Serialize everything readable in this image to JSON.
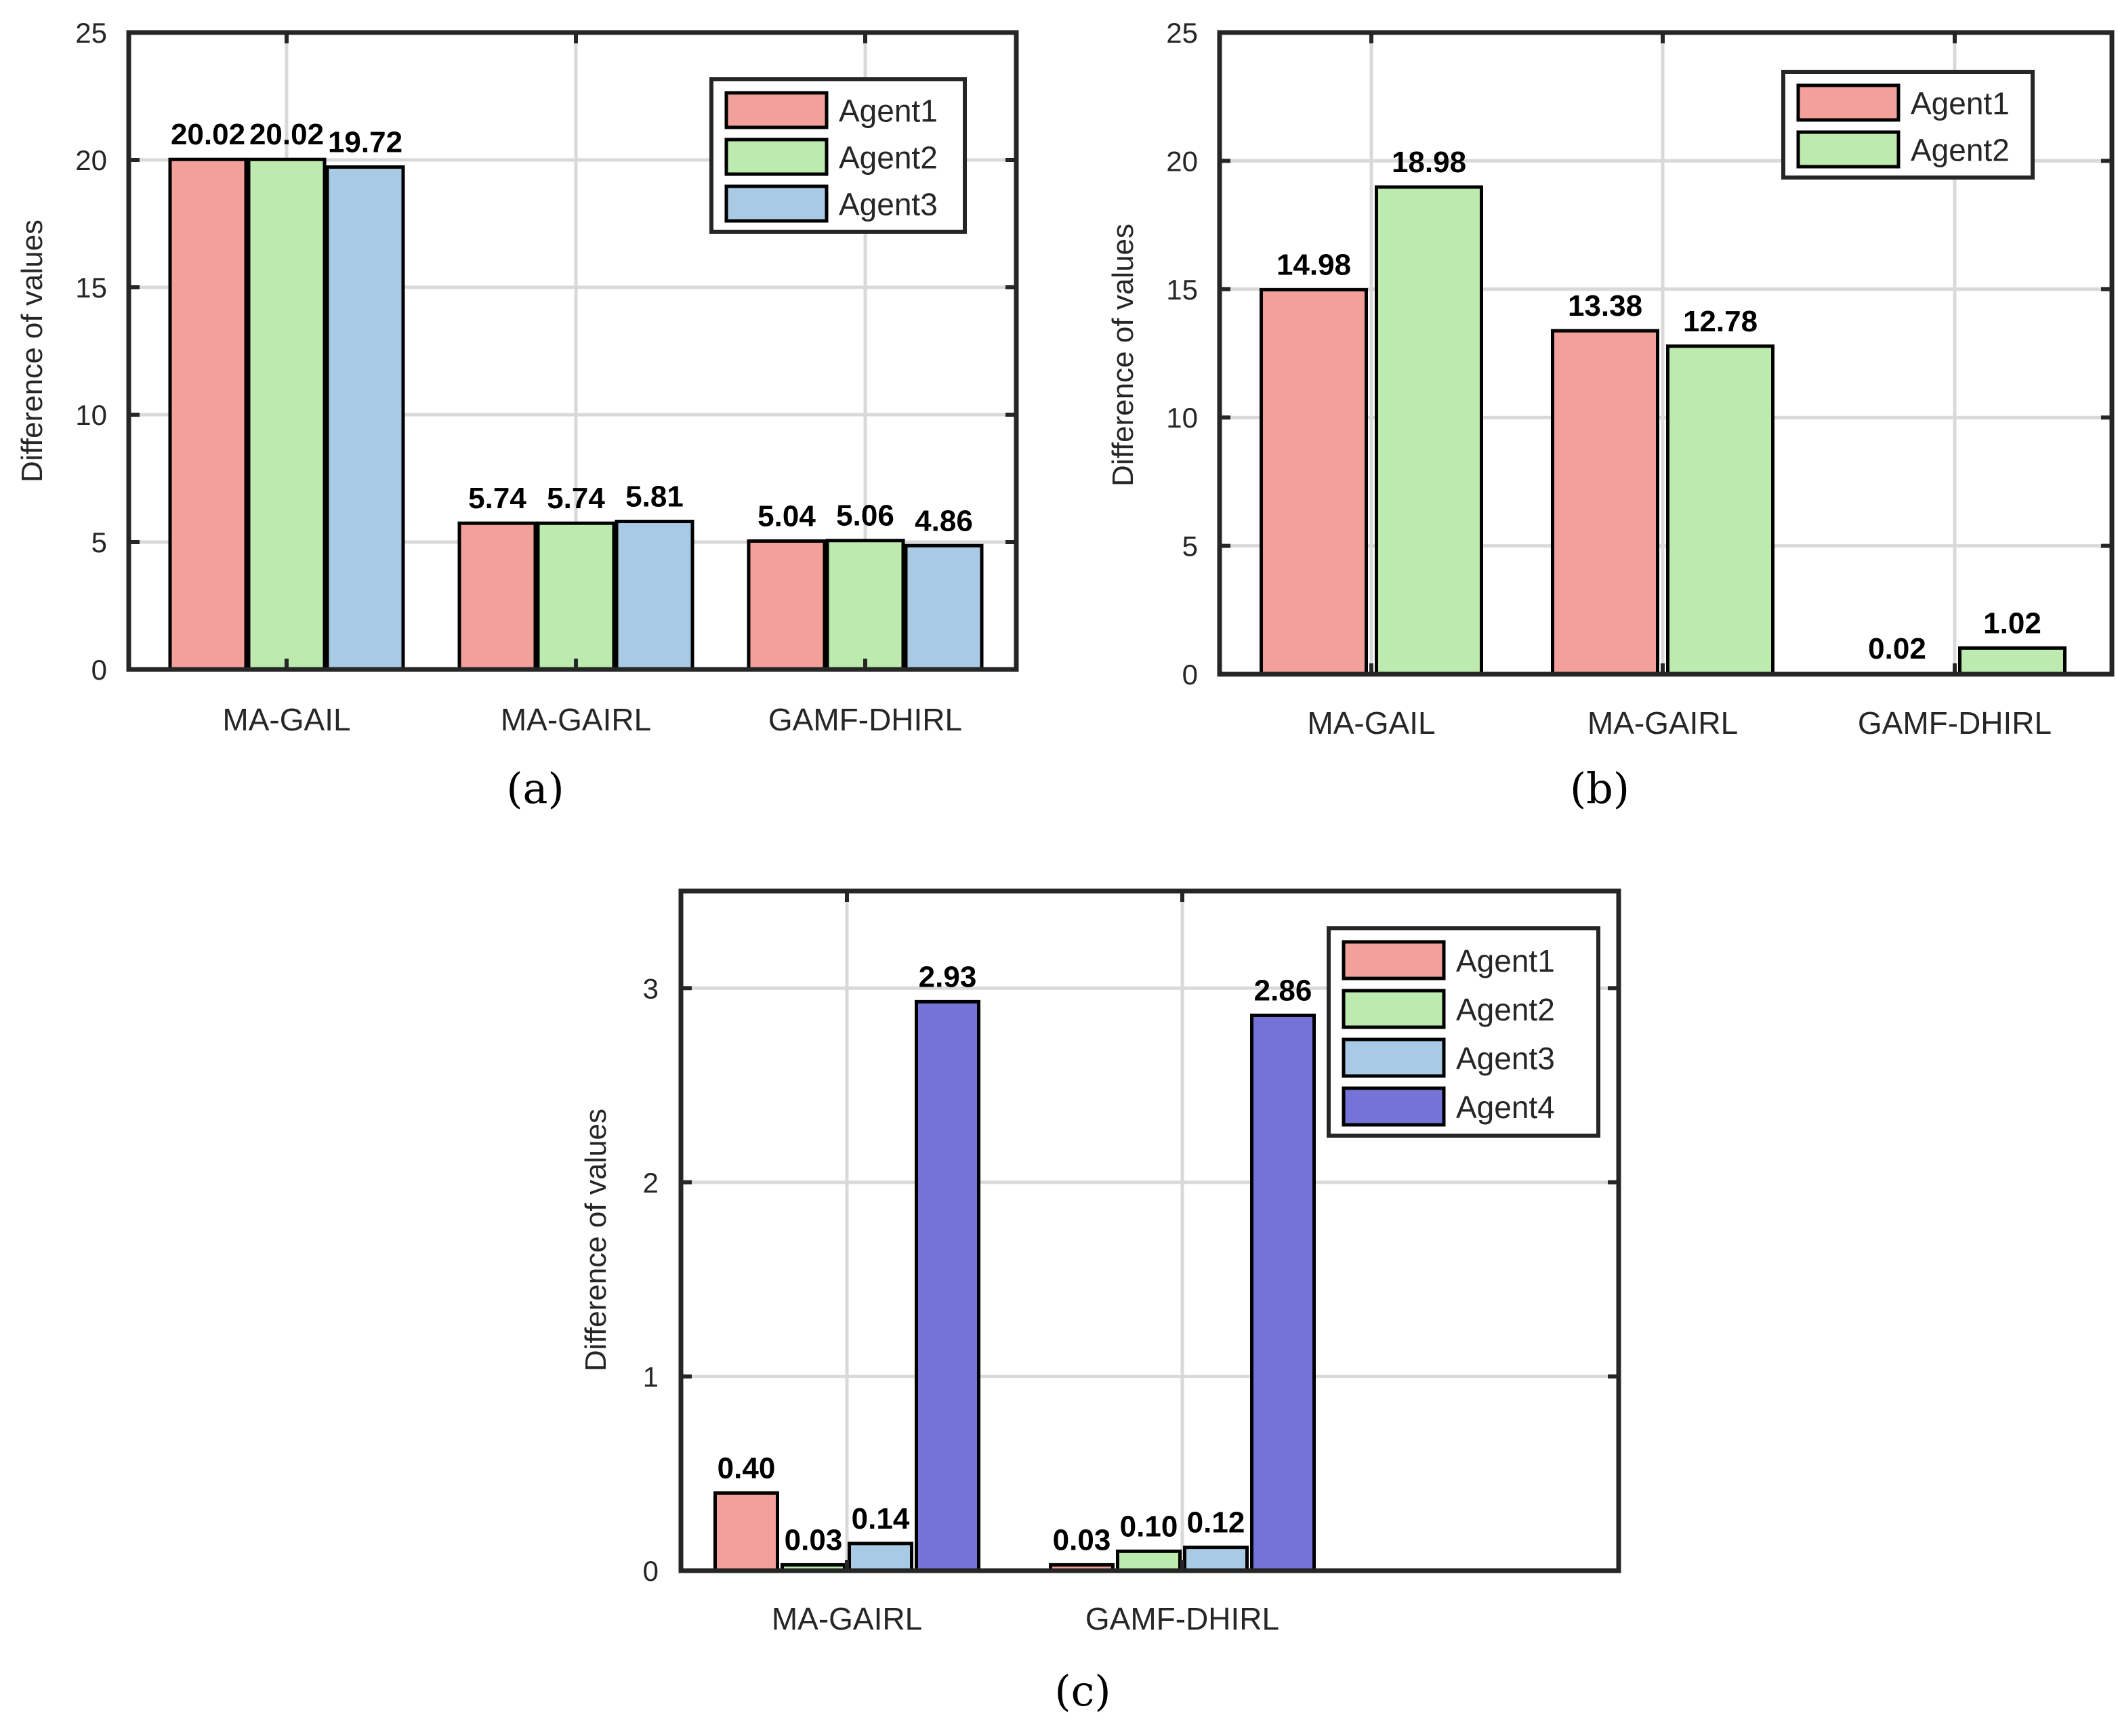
{
  "chart_data": [
    {
      "id": "a",
      "type": "bar",
      "caption": "(a)",
      "title": "",
      "xlabel": "",
      "ylabel": "Difference of values",
      "ylim": [
        0,
        25
      ],
      "yticks": [
        0,
        5,
        10,
        15,
        20,
        25
      ],
      "grid": true,
      "legend_position": "top-right",
      "categories": [
        "MA-GAIL",
        "MA-GAIRL",
        "GAMF-DHIRL"
      ],
      "series": [
        {
          "name": "Agent1",
          "color": "#F4A09A",
          "values": [
            20.02,
            5.74,
            5.04
          ],
          "labels": [
            "20.02",
            "5.74",
            "5.04"
          ]
        },
        {
          "name": "Agent2",
          "color": "#BDEAAF",
          "values": [
            20.02,
            5.74,
            5.06
          ],
          "labels": [
            "20.02",
            "5.74",
            "5.06"
          ]
        },
        {
          "name": "Agent3",
          "color": "#A8CAE4",
          "values": [
            19.72,
            5.81,
            4.86
          ],
          "labels": [
            "19.72",
            "5.81",
            "4.86"
          ]
        }
      ]
    },
    {
      "id": "b",
      "type": "bar",
      "caption": "(b)",
      "title": "",
      "xlabel": "",
      "ylabel": "Difference of values",
      "ylim": [
        0,
        25
      ],
      "yticks": [
        0,
        5,
        10,
        15,
        20,
        25
      ],
      "grid": true,
      "legend_position": "top-right",
      "categories": [
        "MA-GAIL",
        "MA-GAIRL",
        "GAMF-DHIRL"
      ],
      "series": [
        {
          "name": "Agent1",
          "color": "#F4A09A",
          "values": [
            14.98,
            13.38,
            0.02
          ],
          "labels": [
            "14.98",
            "13.38",
            "0.02"
          ]
        },
        {
          "name": "Agent2",
          "color": "#BDEAAF",
          "values": [
            18.98,
            12.78,
            1.02
          ],
          "labels": [
            "18.98",
            "12.78",
            "1.02"
          ]
        }
      ]
    },
    {
      "id": "c",
      "type": "bar",
      "caption": "(c)",
      "title": "",
      "xlabel": "",
      "ylabel": "Difference of values",
      "ylim": [
        0,
        3.5
      ],
      "yticks": [
        0,
        1,
        2,
        3
      ],
      "grid": true,
      "legend_position": "top-right",
      "categories": [
        "MA-GAIRL",
        "GAMF-DHIRL"
      ],
      "series": [
        {
          "name": "Agent1",
          "color": "#F4A09A",
          "values": [
            0.4,
            0.03
          ],
          "labels": [
            "0.40",
            "0.03"
          ]
        },
        {
          "name": "Agent2",
          "color": "#BDEAAF",
          "values": [
            0.03,
            0.1
          ],
          "labels": [
            "0.03",
            "0.10"
          ]
        },
        {
          "name": "Agent3",
          "color": "#A8CAE4",
          "values": [
            0.14,
            0.12
          ],
          "labels": [
            "0.14",
            "0.12"
          ]
        },
        {
          "name": "Agent4",
          "color": "#7573D7",
          "values": [
            2.93,
            2.86
          ],
          "labels": [
            "2.93",
            "2.86"
          ]
        }
      ]
    }
  ]
}
